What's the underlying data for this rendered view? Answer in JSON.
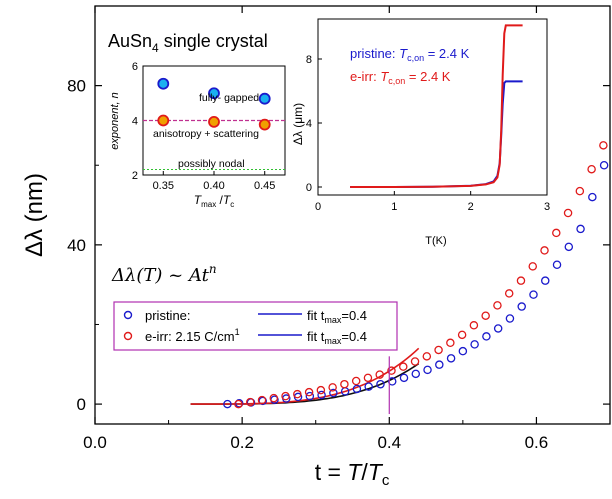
{
  "colors": {
    "pristine": "#1a1acc",
    "eirr": "#e01a1a",
    "limit": "#b030b0",
    "fullgap": "#c03090",
    "nodal": "#30c030",
    "cyan": "#1ab0f0",
    "orange": "#f0a000"
  },
  "chart_data": [
    {
      "type": "scatter",
      "title": "",
      "xlabel_prefix": "t = ",
      "xlabel_T": "T",
      "xlabel_slash": "/",
      "xlabel_Tc": "T",
      "xlabel_sub": "c",
      "ylabel": "Δλ (nm)",
      "xlim": [
        0.0,
        0.7
      ],
      "ylim": [
        -5,
        100
      ],
      "xticks": [
        "0.0",
        "0.2",
        "0.4",
        "0.6"
      ],
      "yticks": [
        "0",
        "40",
        "80"
      ],
      "grid": false,
      "sample_title": "AuSn",
      "sample_sub": "4",
      "sample_rest": " single crystal",
      "formula": "Δλ(T) ~ At",
      "formula_exp": "n",
      "t_max_marker": 0.4,
      "legend": {
        "position": "lower-left",
        "pristine_label": "pristine:",
        "eirr_label": "e-irr: 2.15 C/cm",
        "eirr_sup": "1",
        "fit_prefix": "fit t",
        "fit_sub": "max",
        "fit_value": "=0.4"
      },
      "series": [
        {
          "name": "pristine:",
          "x": [
            0.18,
            0.196,
            0.212,
            0.228,
            0.244,
            0.26,
            0.276,
            0.292,
            0.308,
            0.324,
            0.34,
            0.356,
            0.372,
            0.388,
            0.404,
            0.42,
            0.436,
            0.452,
            0.468,
            0.484,
            0.5,
            0.516,
            0.532,
            0.548,
            0.564,
            0.58,
            0.596,
            0.612,
            0.628,
            0.644,
            0.66,
            0.676,
            0.692
          ],
          "y": [
            0.0,
            0.2,
            0.4,
            0.8,
            1.1,
            1.4,
            1.8,
            2.0,
            2.3,
            2.8,
            3.2,
            3.8,
            4.4,
            5.0,
            5.7,
            6.6,
            7.6,
            8.6,
            9.9,
            11.5,
            13.3,
            15.0,
            17.0,
            19.0,
            21.5,
            24.5,
            27.5,
            31.0,
            35.0,
            39.5,
            44.0,
            52.0,
            60.0
          ]
        },
        {
          "name": "e-irr: 2.15 C/cm1",
          "x": [
            0.195,
            0.211,
            0.227,
            0.243,
            0.259,
            0.275,
            0.291,
            0.307,
            0.323,
            0.339,
            0.355,
            0.371,
            0.387,
            0.403,
            0.419,
            0.435,
            0.451,
            0.467,
            0.483,
            0.499,
            0.515,
            0.531,
            0.547,
            0.563,
            0.579,
            0.595,
            0.611,
            0.627,
            0.643,
            0.659,
            0.675,
            0.691
          ],
          "y": [
            0.0,
            0.5,
            1.0,
            1.5,
            2.0,
            2.5,
            3.0,
            3.5,
            4.2,
            5.0,
            5.8,
            6.6,
            7.4,
            8.4,
            9.4,
            10.7,
            12.0,
            13.6,
            15.4,
            17.4,
            19.8,
            22.2,
            24.8,
            27.8,
            31.0,
            34.6,
            38.6,
            43.0,
            48.0,
            53.5,
            59.0,
            65.0
          ]
        }
      ],
      "fits": [
        {
          "name": "fit pristine",
          "x0": 0.13,
          "x1": 0.44,
          "A": 98,
          "n": 3.9,
          "t0": 0.13
        },
        {
          "name": "fit e-irr",
          "x0": 0.13,
          "x1": 0.44,
          "A": 120,
          "n": 3.8,
          "t0": 0.13
        }
      ]
    },
    {
      "type": "scatter",
      "title": "",
      "xlabel": "T",
      "xlabel_sub": "max",
      "xlabel_mid": " /",
      "xlabel_T": "T",
      "xlabel_Tsub": "c",
      "ylabel": "exponent, n",
      "xlim": [
        0.33,
        0.47
      ],
      "ylim": [
        2,
        6
      ],
      "xticks": [
        "0.35",
        "0.40",
        "0.45"
      ],
      "yticks": [
        "2",
        "4",
        "6"
      ],
      "annotations": {
        "fully_gapped": "fully- gapped",
        "anisotropy": "anisotropy + scattering",
        "nodal": "possibly nodal"
      },
      "series": [
        {
          "name": "pristine",
          "x": [
            0.35,
            0.4,
            0.45
          ],
          "y": [
            5.35,
            5.0,
            4.8
          ]
        },
        {
          "name": "e-irr",
          "x": [
            0.35,
            0.4,
            0.45
          ],
          "y": [
            4.0,
            3.95,
            3.85
          ]
        }
      ],
      "lines": {
        "fully_gapped_y": 4.0,
        "nodal_y": 2.2
      }
    },
    {
      "type": "line",
      "title": "",
      "xlabel": "T(K)",
      "ylabel": "Δλ (μm)",
      "xlim": [
        0,
        3
      ],
      "ylim": [
        -0.5,
        10.5
      ],
      "xticks": [
        "0",
        "1",
        "2",
        "3"
      ],
      "yticks": [
        "0",
        "4",
        "8"
      ],
      "legend": {
        "position": "top-left",
        "pristine": "pristine: ",
        "eirr": "e-irr: ",
        "tc_T": "T",
        "tc_sub": "c,on",
        "tc_val": " = 2.4 K"
      },
      "series": [
        {
          "name": "pristine",
          "x": [
            0.42,
            1.0,
            1.5,
            2.0,
            2.2,
            2.3,
            2.35,
            2.38,
            2.4,
            2.42,
            2.44,
            2.46,
            2.5,
            2.6,
            2.68
          ],
          "y": [
            0.0,
            0.0,
            0.02,
            0.08,
            0.18,
            0.35,
            0.7,
            1.5,
            3.2,
            5.2,
            6.5,
            6.6,
            6.6,
            6.6,
            6.6
          ]
        },
        {
          "name": "e-irr",
          "x": [
            0.42,
            1.0,
            1.5,
            2.0,
            2.2,
            2.3,
            2.35,
            2.38,
            2.4,
            2.42,
            2.44,
            2.46,
            2.5,
            2.6,
            2.68
          ],
          "y": [
            0.0,
            0.0,
            0.02,
            0.07,
            0.16,
            0.3,
            0.6,
            1.4,
            3.5,
            7.0,
            9.6,
            10.1,
            10.1,
            10.1,
            10.1
          ]
        }
      ]
    }
  ]
}
